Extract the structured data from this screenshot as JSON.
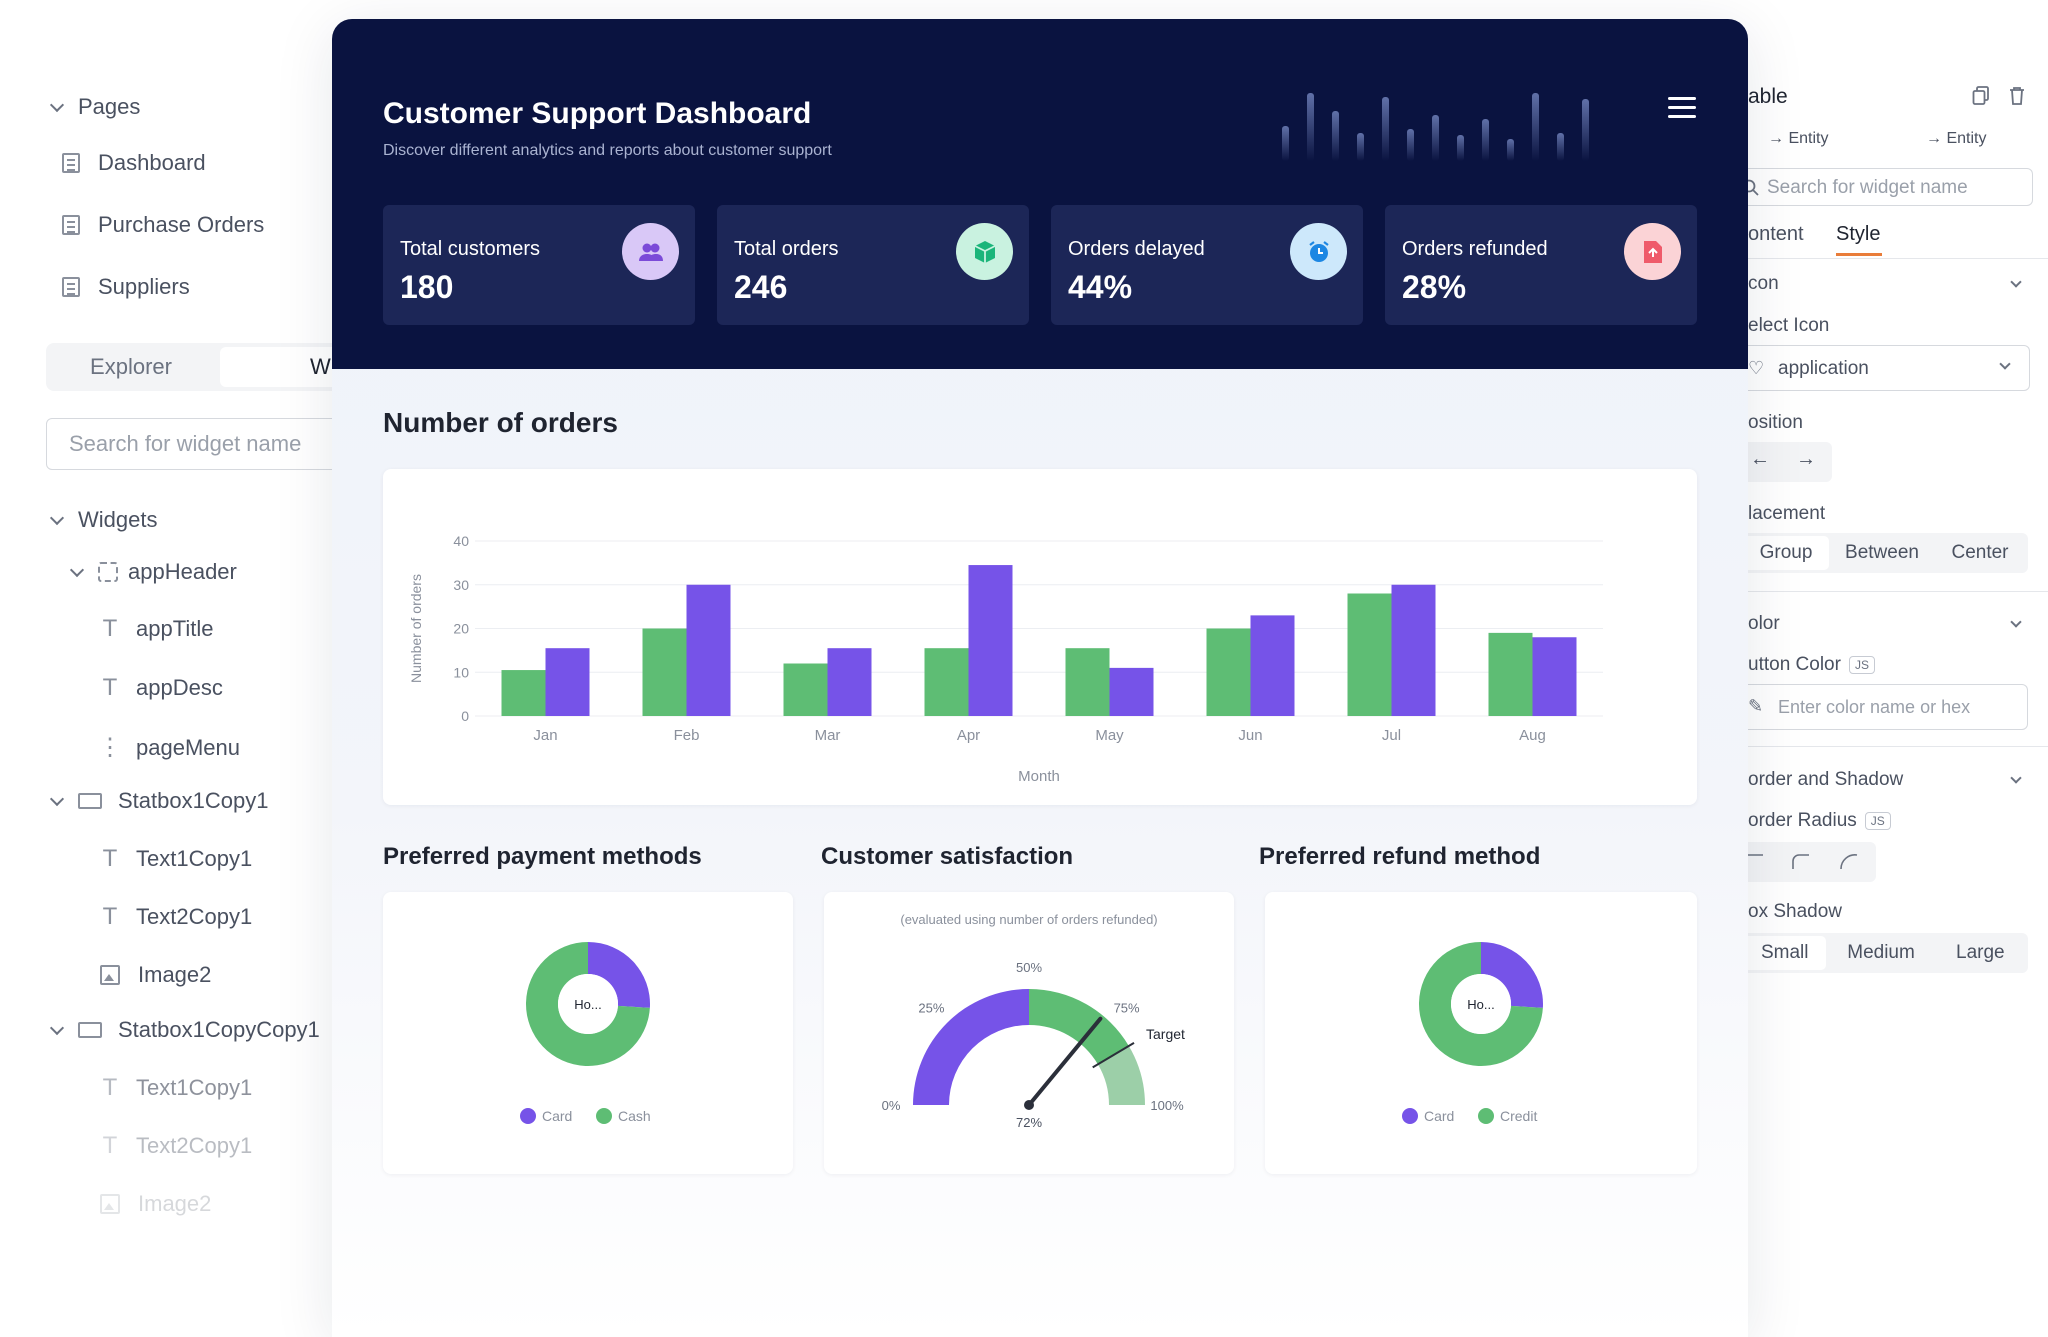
{
  "left_panel": {
    "pages_header": "Pages",
    "pages": [
      "Dashboard",
      "Purchase Orders",
      "Suppliers"
    ],
    "tabs": [
      "Explorer",
      "Widge"
    ],
    "search_placeholder": "Search for widget name",
    "widgets_header": "Widgets",
    "tree": {
      "app_header": "appHeader",
      "app_title": "appTitle",
      "app_desc": "appDesc",
      "page_menu": "pageMenu",
      "statbox1": "Statbox1Copy1",
      "text1": "Text1Copy1",
      "text2": "Text2Copy1",
      "image2": "Image2",
      "statbox2": "Statbox1CopyCopy1",
      "text1b": "Text1Copy1",
      "text2b": "Text2Copy1",
      "image2b": "Image2"
    }
  },
  "dashboard": {
    "title": "Customer Support Dashboard",
    "description": "Discover different analytics and reports about customer support",
    "stats": [
      {
        "label": "Total customers",
        "value": "180",
        "icon": "users-icon",
        "icon_bg": "#d9c8f7",
        "icon_color": "#7b4ad8"
      },
      {
        "label": "Total orders",
        "value": "246",
        "icon": "box-icon",
        "icon_bg": "#c9f2e0",
        "icon_color": "#1bb57a"
      },
      {
        "label": "Orders delayed",
        "value": "44%",
        "icon": "clock-icon",
        "icon_bg": "#cde8fb",
        "icon_color": "#1d87e3"
      },
      {
        "label": "Orders refunded",
        "value": "28%",
        "icon": "refund-doc-icon",
        "icon_bg": "#fbd3d6",
        "icon_color": "#ef5a6a"
      }
    ],
    "orders_title": "Number of orders",
    "payment_title": "Preferred payment methods",
    "satisfaction_title": "Customer satisfaction",
    "refund_title": "Preferred refund method"
  },
  "chart_data": [
    {
      "type": "bar",
      "title": "Number of orders",
      "xlabel": "Month",
      "ylabel": "Number of orders",
      "categories": [
        "Jan",
        "Feb",
        "Mar",
        "Apr",
        "May",
        "Jun",
        "Jul",
        "Aug"
      ],
      "series": [
        {
          "color": "#5ebd74",
          "values": [
            10.5,
            20,
            12,
            15.5,
            15.5,
            20,
            28,
            19
          ]
        },
        {
          "color": "#7653e8",
          "values": [
            15.5,
            30,
            15.5,
            34.5,
            11,
            23,
            30,
            18
          ]
        }
      ],
      "ylim": [
        0,
        40
      ],
      "yticks": [
        0,
        10,
        20,
        30,
        40
      ],
      "grid": true
    },
    {
      "type": "pie",
      "center_label": "Ho...",
      "labels": [
        "Card",
        "Cash"
      ],
      "values": [
        26,
        74
      ],
      "colors": [
        "#7653e8",
        "#5ebd74"
      ]
    },
    {
      "type": "gauge",
      "subtitle": "(evaluated using number of orders refunded)",
      "value": 72,
      "value_label": "72%",
      "target_label": "Target",
      "target": 83,
      "ticks": [
        "0%",
        "25%",
        "50%",
        "75%",
        "100%"
      ],
      "colors": [
        "#7653e8",
        "#5ebd74",
        "#9ccfa8"
      ]
    },
    {
      "type": "pie",
      "center_label": "Ho...",
      "labels": [
        "Card",
        "Credit"
      ],
      "values": [
        26,
        74
      ],
      "colors": [
        "#7653e8",
        "#5ebd74"
      ]
    }
  ],
  "right_panel": {
    "title": "able",
    "entity_a": "Entity",
    "entity_b": "Entity",
    "search_placeholder": "Search for widget name",
    "tab_content": "ontent",
    "tab_style": "Style",
    "icon_section": "con",
    "select_icon_label": "elect Icon",
    "select_icon_value": "application",
    "position_label": "osition",
    "placement_label": "lacement",
    "placement_options": [
      "Group",
      "Between",
      "Center"
    ],
    "color_section": "olor",
    "button_color_label": "utton Color",
    "js_badge": "JS",
    "color_placeholder": "Enter color name or hex",
    "border_section": "order and Shadow",
    "border_radius_label": "order Radius",
    "box_shadow_label": "ox Shadow",
    "shadow_options": [
      "Small",
      "Medium",
      "Large"
    ],
    "accent": "#e97d3a"
  }
}
